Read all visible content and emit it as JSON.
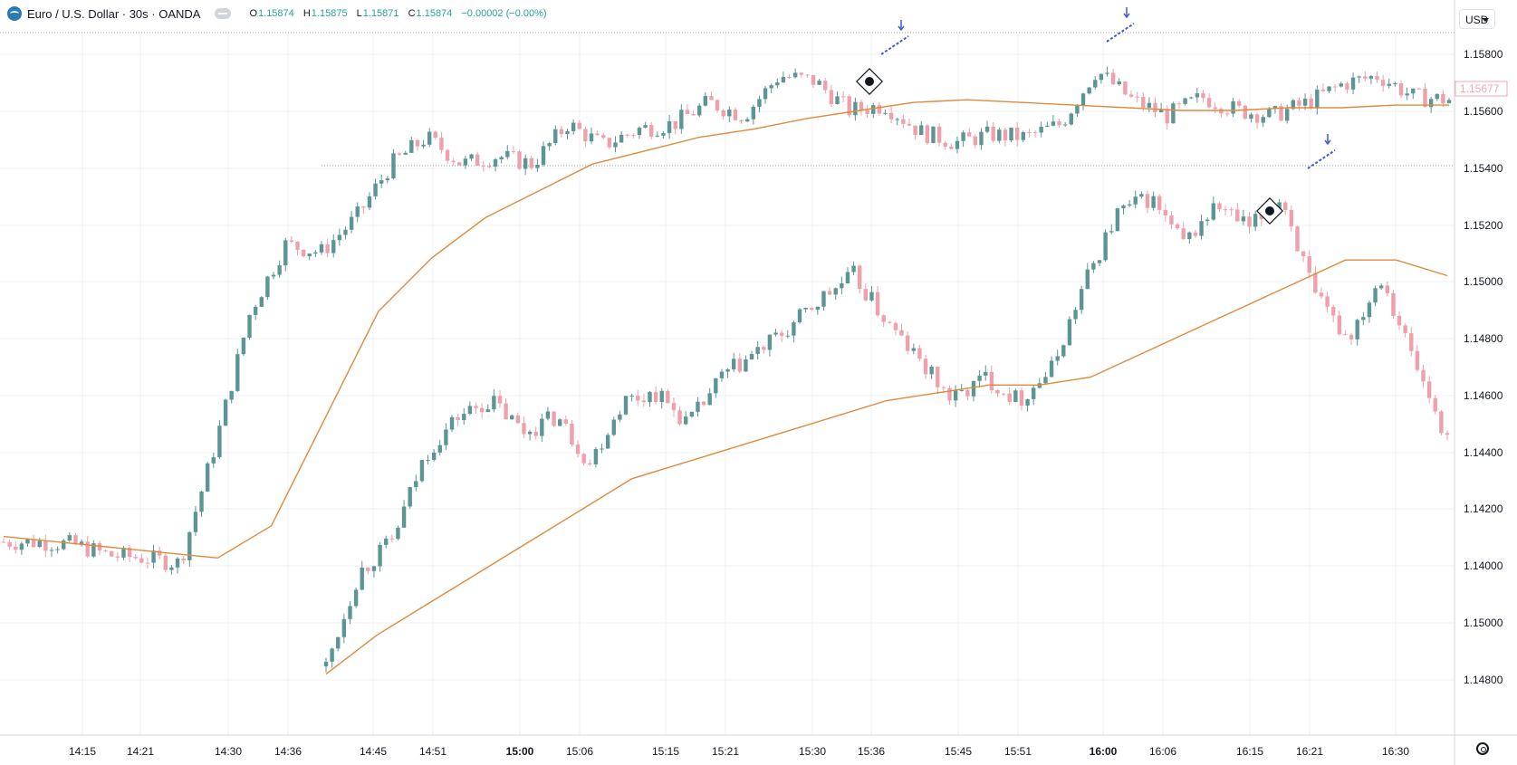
{
  "header": {
    "symbol": "Euro / U.S. Dollar · 30s · OANDA",
    "ohlc": {
      "o_label": "O",
      "o": "1.15874",
      "h_label": "H",
      "h": "1.15875",
      "l_label": "L",
      "l": "1.15871",
      "c_label": "C",
      "c": "1.15874",
      "change": "−0.00002 (−0.00%)"
    }
  },
  "currency": "USD",
  "price_axis": [
    "1.15800",
    "1.15600",
    "1.15400",
    "1.15200",
    "1.15000",
    "1.14800",
    "1.14600",
    "1.14400",
    "1.14200",
    "1.14000",
    "1.15000",
    "1.14800"
  ],
  "last_price": "1.15677",
  "time_axis": [
    "14:15",
    "14:21",
    "14:30",
    "14:36",
    "14:45",
    "14:51",
    "15:00",
    "15:06",
    "15:15",
    "15:21",
    "15:30",
    "15:36",
    "15:45",
    "15:51",
    "16:00",
    "16:06",
    "16:15",
    "16:21",
    "16:30"
  ],
  "colors": {
    "up": "#5b9694",
    "down": "#f0a0ab",
    "ma": "#e08a3c",
    "grid": "#eef0f4",
    "marker": "#3d5ad6",
    "last": "#f7a4b0"
  },
  "chart_data": [
    {
      "type": "candlestick",
      "name": "upper-panel",
      "overlay": "moving-average",
      "x": [
        "14:15",
        "14:21",
        "14:30",
        "14:36",
        "14:45",
        "14:51",
        "15:00",
        "15:06",
        "15:15",
        "15:21",
        "15:30",
        "15:36",
        "15:45",
        "15:51",
        "16:00",
        "16:06",
        "16:15",
        "16:21",
        "16:30"
      ],
      "ylim": [
        1.139,
        1.159
      ],
      "close_path": [
        1.1404,
        1.1404,
        1.1403,
        1.1399,
        1.1398,
        1.1396,
        1.144,
        1.149,
        1.1515,
        1.1512,
        1.1525,
        1.1545,
        1.1555,
        1.1545,
        1.1548,
        1.1545,
        1.156,
        1.1552,
        1.1558,
        1.156,
        1.1568,
        1.1563,
        1.1578,
        1.1576,
        1.1565,
        1.1567,
        1.1557,
        1.1553,
        1.1556,
        1.1555,
        1.156,
        1.158,
        1.1569,
        1.1563,
        1.157,
        1.1565,
        1.1563,
        1.1568,
        1.1575,
        1.1578,
        1.157,
        1.1569
      ],
      "ma_path": [
        1.1406,
        1.1404,
        1.1402,
        1.14,
        1.1398,
        1.141,
        1.145,
        1.149,
        1.151,
        1.1525,
        1.1535,
        1.1545,
        1.155,
        1.1555,
        1.1558,
        1.1562,
        1.1565,
        1.1568,
        1.1569,
        1.1568,
        1.1567,
        1.1566,
        1.1565,
        1.1565,
        1.1566,
        1.1566,
        1.1567,
        1.1567
      ]
    },
    {
      "type": "candlestick",
      "name": "lower-panel",
      "overlay": "moving-average",
      "x": [
        "14:45",
        "14:51",
        "15:00",
        "15:06",
        "15:15",
        "15:21",
        "15:30",
        "15:36",
        "15:45",
        "15:51",
        "16:00",
        "16:06",
        "16:15",
        "16:21",
        "16:30"
      ],
      "ylim": [
        1.147,
        1.1543
      ],
      "close_path": [
        1.1478,
        1.149,
        1.1494,
        1.1505,
        1.151,
        1.1512,
        1.1508,
        1.151,
        1.1504,
        1.1512,
        1.1513,
        1.1509,
        1.1515,
        1.1518,
        1.1521,
        1.1525,
        1.1528,
        1.1522,
        1.1517,
        1.1512,
        1.1515,
        1.1512,
        1.1516,
        1.1527,
        1.1536,
        1.1538,
        1.1532,
        1.1537,
        1.1534,
        1.1538,
        1.1525,
        1.152,
        1.1528,
        1.1517,
        1.1507
      ],
      "ma_path": [
        1.1477,
        1.1482,
        1.1486,
        1.149,
        1.1494,
        1.1498,
        1.1502,
        1.1504,
        1.1506,
        1.1508,
        1.151,
        1.1512,
        1.1513,
        1.1514,
        1.1514,
        1.1515,
        1.1518,
        1.1521,
        1.1524,
        1.1527,
        1.153,
        1.153,
        1.1528
      ]
    }
  ]
}
